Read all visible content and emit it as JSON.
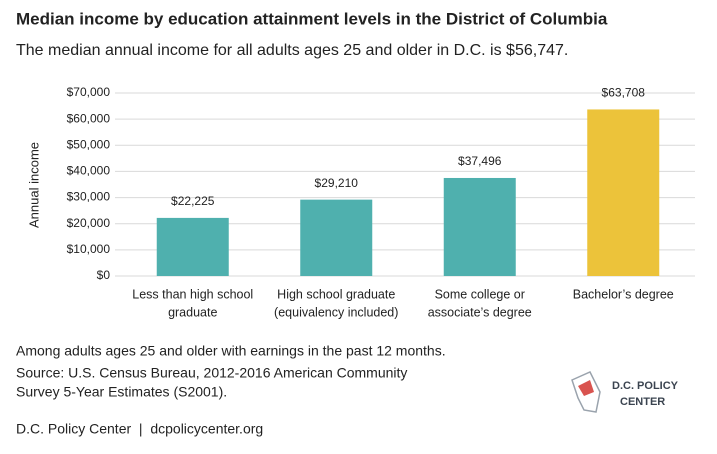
{
  "chart_data": {
    "type": "bar",
    "title": "Median income by education attainment levels in the District of Columbia",
    "subtitle": "The median annual income for all adults ages 25 and older in D.C. is $56,747.",
    "y_label": "Annual income",
    "categories": [
      [
        "Less than high school",
        "graduate"
      ],
      [
        "High school graduate",
        "(equivalency included)"
      ],
      [
        "Some college or",
        "associate’s degree"
      ],
      [
        "Bachelor’s degree"
      ]
    ],
    "values": [
      22225,
      29210,
      37496,
      63708
    ],
    "value_labels": [
      "$22,225",
      "$29,210",
      "$37,496",
      "$63,708"
    ],
    "colors": [
      "#4fb0ae",
      "#4fb0ae",
      "#4fb0ae",
      "#ecc33a"
    ],
    "ylim": [
      0,
      70000
    ],
    "yticks": [
      {
        "value": 0,
        "label": "$0"
      },
      {
        "value": 10000,
        "label": "$10,000"
      },
      {
        "value": 20000,
        "label": "$20,000"
      },
      {
        "value": 30000,
        "label": "$30,000"
      },
      {
        "value": 40000,
        "label": "$40,000"
      },
      {
        "value": 50000,
        "label": "$50,000"
      },
      {
        "value": 60000,
        "label": "$60,000"
      },
      {
        "value": 70000,
        "label": "$70,000"
      }
    ],
    "grid": true
  },
  "note": "Among adults ages 25 and older with earnings in the past 12 months.",
  "source": [
    "Source: U.S. Census Bureau, 2012-2016 American Community",
    "Survey 5-Year Estimates (S2001)."
  ],
  "footer": "D.C. Policy Center  |  dcpolicycenter.org",
  "logo": [
    "D.C. POLICY",
    "CENTER"
  ]
}
